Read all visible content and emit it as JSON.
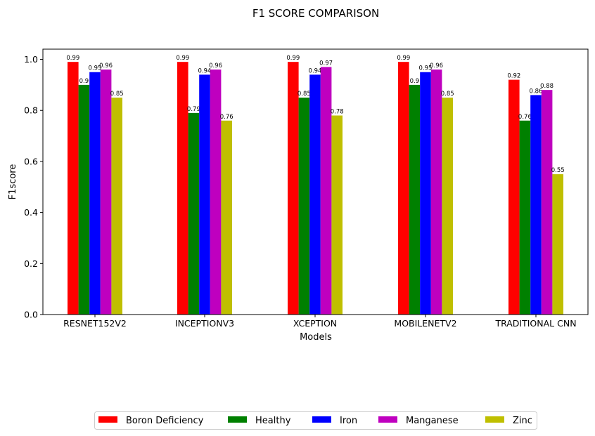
{
  "chart_data": {
    "type": "bar",
    "title": "F1 SCORE COMPARISON",
    "xlabel": "Models",
    "ylabel": "F1score",
    "categories": [
      "RESNET152V2",
      "INCEPTIONV3",
      "XCEPTION",
      "MOBILENETV2",
      "TRADITIONAL CNN"
    ],
    "series": [
      {
        "name": "Boron Deficiency",
        "color": "#ff0000",
        "values": [
          0.99,
          0.99,
          0.99,
          0.99,
          0.92
        ]
      },
      {
        "name": "Healthy",
        "color": "#008000",
        "values": [
          0.9,
          0.79,
          0.85,
          0.9,
          0.76
        ]
      },
      {
        "name": "Iron",
        "color": "#0000ff",
        "values": [
          0.95,
          0.94,
          0.94,
          0.95,
          0.86
        ]
      },
      {
        "name": "Manganese",
        "color": "#bf00bf",
        "values": [
          0.96,
          0.96,
          0.97,
          0.96,
          0.88
        ]
      },
      {
        "name": "Zinc",
        "color": "#bfbf00",
        "values": [
          0.85,
          0.76,
          0.78,
          0.85,
          0.55
        ]
      }
    ],
    "ylim": [
      0,
      1.04
    ],
    "yticks": [
      "0.0",
      "0.2",
      "0.4",
      "0.6",
      "0.8",
      "1.0"
    ],
    "grid": false,
    "legend_position": "bottom-center"
  }
}
